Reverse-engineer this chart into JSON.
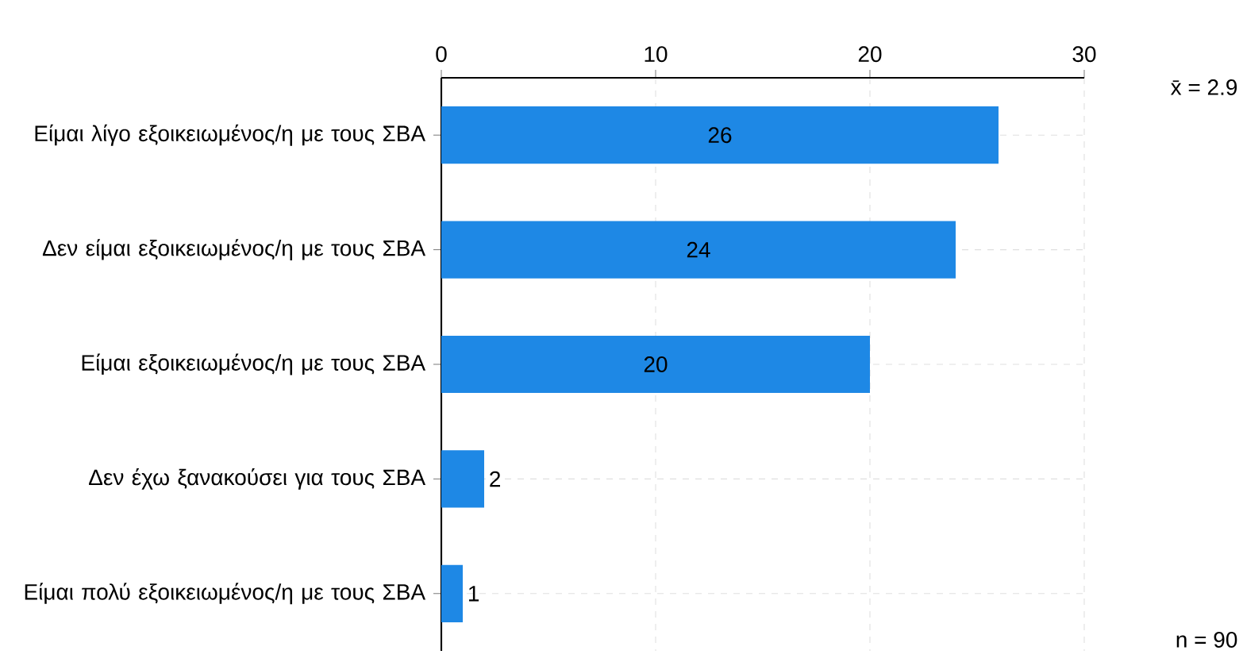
{
  "chart_data": {
    "type": "bar",
    "orientation": "horizontal",
    "categories": [
      "Είμαι λίγο εξοικειωμένος/η με τους ΣΒΑ",
      "Δεν είμαι εξοικειωμένος/η με τους ΣΒΑ",
      "Είμαι εξοικειωμένος/η με τους ΣΒΑ",
      "Δεν έχω ξανακούσει για τους ΣΒΑ",
      "Είμαι πολύ εξοικειωμένος/η με τους ΣΒΑ"
    ],
    "values": [
      26,
      24,
      20,
      2,
      1
    ],
    "color": "#1e88e5",
    "xlim": [
      0,
      30
    ],
    "xticks": [
      0,
      10,
      20,
      30
    ],
    "grid": true,
    "data_labels": true,
    "annotations": [
      "x̄ = 2.9",
      "n = 90"
    ]
  }
}
